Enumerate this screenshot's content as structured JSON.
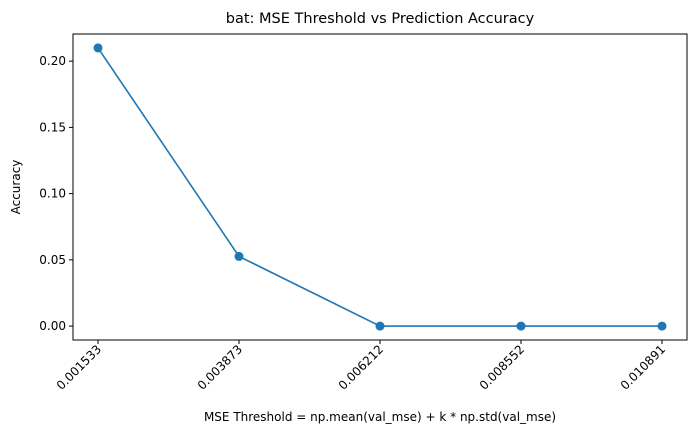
{
  "chart_data": {
    "type": "line",
    "title": "bat: MSE Threshold vs Prediction Accuracy",
    "xlabel": "MSE Threshold = np.mean(val_mse) + k * np.std(val_mse)",
    "ylabel": "Accuracy",
    "categories": [
      "0.001533",
      "0.003873",
      "0.006212",
      "0.008552",
      "0.010891"
    ],
    "series": [
      {
        "values": [
          0.21,
          0.0526,
          0.0,
          0.0,
          0.0
        ]
      }
    ],
    "yticks": [
      "0.00",
      "0.05",
      "0.10",
      "0.15",
      "0.20"
    ],
    "ytick_values": [
      0,
      0.05,
      0.1,
      0.15,
      0.2
    ],
    "ylim": [
      -0.0105,
      0.2205
    ],
    "grid": false,
    "x_tick_rotation": "45deg",
    "colors": {
      "series": "#1f77b4",
      "axis": "#000000"
    }
  }
}
